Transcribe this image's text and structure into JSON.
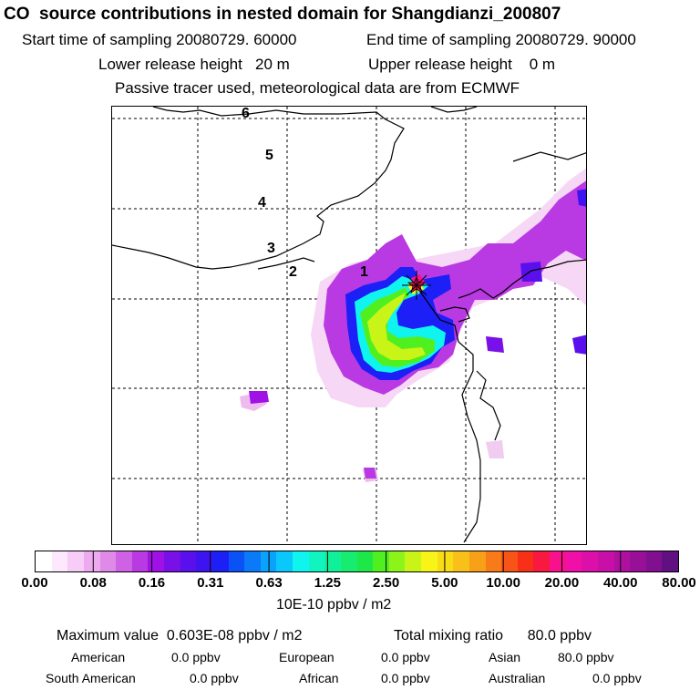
{
  "title": "CO  source contributions in nested domain for Shangdianzi_200807",
  "start_time": "Start time of sampling 20080729. 60000",
  "end_time": "End time of sampling 20080729. 90000",
  "lower_release": "Lower release height   20 m",
  "upper_release": "Upper release height    0 m",
  "tracer_note": "Passive tracer used, meteorological data are from ECMWF",
  "map": {
    "day_labels": [
      "6",
      "5",
      "4",
      "3",
      "2",
      "1"
    ],
    "station_marker": "receptor-star"
  },
  "colorbar": {
    "labels": [
      "0.00",
      "0.08",
      "0.16",
      "0.31",
      "0.63",
      "1.25",
      "2.50",
      "5.00",
      "10.00",
      "20.00",
      "40.00",
      "80.00"
    ],
    "colors": [
      "#ffffff",
      "#fde8fd",
      "#f7ccf7",
      "#eeaaf0",
      "#e08ae8",
      "#cf62e4",
      "#b93ae2",
      "#a011e6",
      "#7a10e8",
      "#5a10ec",
      "#3d14f0",
      "#1c20f6",
      "#0a52f6",
      "#0a7af8",
      "#0aa2fa",
      "#0ac8fc",
      "#10f4f0",
      "#10f4c0",
      "#10f09a",
      "#18ec70",
      "#1ee848",
      "#50f020",
      "#8cf418",
      "#c8f418",
      "#f8f418",
      "#f8dc18",
      "#f8c018",
      "#f8a018",
      "#f87a18",
      "#f85418",
      "#f83018",
      "#f81840",
      "#f8108c",
      "#f010a8",
      "#dc10a8",
      "#c810a8",
      "#b010a0",
      "#981098",
      "#801090",
      "#601080"
    ],
    "units": "10E-10 ppbv / m2"
  },
  "summary": {
    "max_value": "Maximum value  0.603E-08 ppbv / m2",
    "total_mixing": "Total mixing ratio      80.0 ppbv",
    "regions": [
      {
        "label": "American",
        "value": "0.0 ppbv"
      },
      {
        "label": "European",
        "value": "0.0 ppbv"
      },
      {
        "label": "Asian",
        "value": "80.0 ppbv"
      },
      {
        "label": "South American",
        "value": "0.0 ppbv"
      },
      {
        "label": "African",
        "value": "0.0 ppbv"
      },
      {
        "label": "Australian",
        "value": "0.0 ppbv"
      }
    ]
  }
}
